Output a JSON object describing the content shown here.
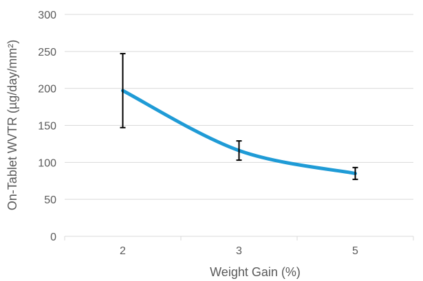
{
  "chart_data": {
    "type": "line",
    "title": "",
    "xlabel": "Weight Gain (%)",
    "ylabel": "On-Tablet WVTR (µg/day/mm²)",
    "categories": [
      "2",
      "3",
      "5"
    ],
    "series": [
      {
        "values": [
          197,
          116,
          85
        ],
        "error": [
          50,
          13,
          8
        ],
        "color": "#1f9bd6"
      }
    ],
    "ylim": [
      0,
      300
    ],
    "yticks": [
      0,
      50,
      100,
      150,
      200,
      250,
      300
    ],
    "grid": true,
    "legend": "none",
    "gridColor": "#d9d9d9",
    "errorBarColor": "#000000"
  }
}
